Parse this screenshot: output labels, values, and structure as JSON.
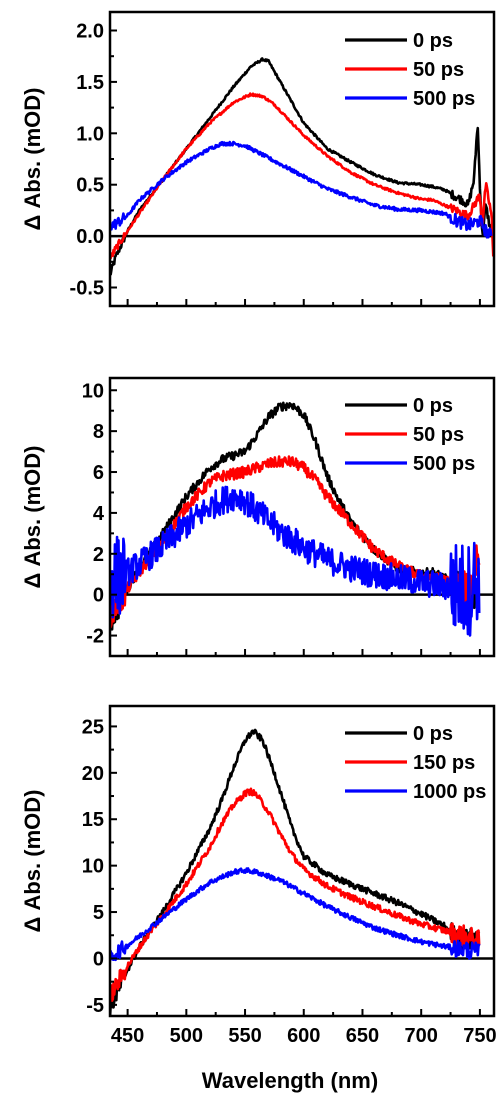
{
  "figure": {
    "xlabel": "Wavelength (nm)"
  },
  "chart_data": [
    {
      "type": "line",
      "ylabel": "Δ Abs. (mOD)",
      "xlim": [
        435,
        762
      ],
      "ylim": [
        -0.68,
        2.18
      ],
      "yticks": [
        "-0.5",
        "0.0",
        "0.5",
        "1.0",
        "1.5",
        "2.0"
      ],
      "ytick_values": [
        -0.5,
        0.0,
        0.5,
        1.0,
        1.5,
        2.0
      ],
      "zero_line": true,
      "legend_position": "top-right",
      "series": [
        {
          "name": "0 ps",
          "color": "#000000",
          "noise": 0.02,
          "x": [
            435,
            440,
            450,
            460,
            480,
            500,
            520,
            540,
            555,
            565,
            570,
            580,
            600,
            620,
            640,
            660,
            680,
            700,
            710,
            720,
            730,
            735,
            740,
            745,
            748,
            750,
            752,
            755,
            760
          ],
          "y": [
            -0.38,
            -0.2,
            0.05,
            0.25,
            0.55,
            0.85,
            1.15,
            1.45,
            1.65,
            1.72,
            1.7,
            1.5,
            1.1,
            0.85,
            0.72,
            0.6,
            0.52,
            0.5,
            0.48,
            0.45,
            0.38,
            0.35,
            0.3,
            0.55,
            1.1,
            0.5,
            0.0,
            0.3,
            0.0
          ]
        },
        {
          "name": "50 ps",
          "color": "#ff0000",
          "noise": 0.02,
          "x": [
            435,
            440,
            450,
            460,
            480,
            500,
            520,
            540,
            555,
            565,
            575,
            590,
            600,
            620,
            640,
            660,
            680,
            700,
            710,
            720,
            730,
            735,
            740,
            745,
            750,
            752,
            755,
            760,
            762
          ],
          "y": [
            -0.22,
            -0.12,
            0.05,
            0.22,
            0.55,
            0.85,
            1.1,
            1.3,
            1.38,
            1.36,
            1.28,
            1.1,
            0.98,
            0.78,
            0.62,
            0.5,
            0.42,
            0.36,
            0.35,
            0.3,
            0.25,
            0.22,
            0.2,
            0.3,
            0.4,
            0.1,
            0.5,
            0.2,
            -0.4
          ]
        },
        {
          "name": "500 ps",
          "color": "#0000ff",
          "noise": 0.03,
          "x": [
            435,
            440,
            450,
            460,
            480,
            500,
            520,
            530,
            540,
            550,
            560,
            580,
            600,
            620,
            640,
            660,
            680,
            700,
            720,
            730,
            740,
            750,
            755,
            760
          ],
          "y": [
            0.1,
            0.12,
            0.2,
            0.35,
            0.55,
            0.72,
            0.85,
            0.9,
            0.9,
            0.88,
            0.82,
            0.7,
            0.58,
            0.46,
            0.38,
            0.3,
            0.26,
            0.25,
            0.22,
            0.15,
            0.1,
            0.15,
            0.05,
            0.0
          ]
        }
      ]
    },
    {
      "type": "line",
      "ylabel": "Δ Abs. (mOD)",
      "xlim": [
        435,
        762
      ],
      "ylim": [
        -3.0,
        10.6
      ],
      "yticks": [
        "-2",
        "0",
        "2",
        "4",
        "6",
        "8",
        "10"
      ],
      "ytick_values": [
        -2,
        0,
        2,
        4,
        6,
        8,
        10
      ],
      "zero_line": true,
      "legend_position": "top-right",
      "series": [
        {
          "name": "0 ps",
          "color": "#000000",
          "noise": 0.08,
          "x": [
            435,
            440,
            450,
            460,
            480,
            500,
            520,
            530,
            540,
            550,
            560,
            570,
            580,
            590,
            600,
            610,
            620,
            630,
            640,
            660,
            680,
            700,
            710,
            720,
            730,
            740,
            745,
            748
          ],
          "y": [
            -1.3,
            -0.8,
            0.3,
            1.3,
            3.0,
            4.8,
            6.2,
            6.6,
            6.8,
            7.0,
            7.8,
            8.7,
            9.2,
            9.3,
            8.8,
            7.5,
            5.8,
            4.6,
            3.6,
            2.2,
            1.3,
            1.05,
            1.1,
            0.8,
            0.4,
            0.1,
            0.0,
            0.2
          ]
        },
        {
          "name": "50 ps",
          "color": "#ff0000",
          "noise": 0.1,
          "x": [
            435,
            440,
            450,
            460,
            480,
            500,
            520,
            530,
            540,
            550,
            560,
            570,
            580,
            590,
            600,
            610,
            620,
            640,
            660,
            680,
            700,
            710,
            720,
            730,
            740,
            745,
            748,
            750
          ],
          "y": [
            -0.8,
            -0.5,
            0.3,
            1.1,
            2.6,
            4.3,
            5.5,
            5.8,
            5.9,
            6.0,
            6.2,
            6.4,
            6.5,
            6.5,
            6.2,
            5.6,
            4.8,
            3.5,
            2.2,
            1.4,
            0.9,
            0.85,
            0.7,
            0.4,
            0.1,
            0.9,
            2.4,
            0.5
          ]
        },
        {
          "name": "500 ps",
          "color": "#0000ff",
          "noise": 0.25,
          "x": [
            435,
            440,
            450,
            460,
            480,
            500,
            520,
            530,
            540,
            545,
            550,
            560,
            580,
            600,
            620,
            640,
            660,
            680,
            700,
            720,
            730,
            740,
            748,
            750
          ],
          "y": [
            0.8,
            0.9,
            1.1,
            1.5,
            2.4,
            3.4,
            4.3,
            4.6,
            4.8,
            4.8,
            4.6,
            4.1,
            3.1,
            2.3,
            1.7,
            1.3,
            1.0,
            0.8,
            0.6,
            0.4,
            0.3,
            0.2,
            1.0,
            -1.0
          ]
        }
      ]
    },
    {
      "type": "line",
      "ylabel": "Δ Abs. (mOD)",
      "xlim": [
        435,
        762
      ],
      "ylim": [
        -6.2,
        27.2
      ],
      "yticks": [
        "-5",
        "0",
        "5",
        "10",
        "15",
        "20",
        "25"
      ],
      "ytick_values": [
        -5,
        0,
        5,
        10,
        15,
        20,
        25
      ],
      "zero_line": true,
      "legend_position": "top-right",
      "series": [
        {
          "name": "0 ps",
          "color": "#000000",
          "noise": 0.05,
          "x": [
            435,
            440,
            450,
            460,
            470,
            480,
            500,
            520,
            530,
            540,
            550,
            557,
            565,
            575,
            590,
            600,
            620,
            640,
            660,
            680,
            700,
            720,
            730,
            740,
            745,
            748,
            750
          ],
          "y": [
            -5.5,
            -4.0,
            -1.2,
            1.2,
            3.2,
            5.0,
            9.2,
            14.0,
            17.0,
            20.5,
            23.5,
            24.5,
            23.5,
            20.0,
            14.0,
            11.0,
            9.0,
            8.0,
            7.0,
            6.0,
            4.8,
            3.5,
            2.2,
            2.0,
            2.2,
            2.5,
            3.3
          ]
        },
        {
          "name": "150 ps",
          "color": "#ff0000",
          "noise": 0.05,
          "x": [
            435,
            440,
            450,
            460,
            470,
            480,
            500,
            520,
            530,
            540,
            550,
            555,
            560,
            570,
            580,
            590,
            600,
            620,
            640,
            660,
            680,
            700,
            720,
            740,
            750
          ],
          "y": [
            -4.0,
            -3.0,
            -0.8,
            1.2,
            3.0,
            4.6,
            8.0,
            12.0,
            14.5,
            16.5,
            17.8,
            18.0,
            17.6,
            15.8,
            13.4,
            11.2,
            9.6,
            7.8,
            6.6,
            5.6,
            4.6,
            3.7,
            3.0,
            2.3,
            1.8
          ]
        },
        {
          "name": "1000 ps",
          "color": "#0000ff",
          "noise": 0.04,
          "x": [
            435,
            440,
            450,
            460,
            470,
            480,
            500,
            520,
            540,
            550,
            560,
            580,
            600,
            620,
            640,
            660,
            680,
            700,
            720,
            740,
            750
          ],
          "y": [
            0.0,
            0.6,
            1.4,
            2.4,
            3.4,
            4.4,
            6.4,
            8.2,
            9.3,
            9.5,
            9.3,
            8.4,
            7.0,
            5.6,
            4.4,
            3.3,
            2.5,
            1.8,
            1.3,
            0.9,
            0.7
          ]
        }
      ]
    }
  ],
  "x_axis": {
    "ticks": [
      "450",
      "500",
      "550",
      "600",
      "650",
      "700",
      "750"
    ],
    "tick_values": [
      450,
      500,
      550,
      600,
      650,
      700,
      750
    ]
  },
  "colors": {
    "black": "#000000",
    "red": "#ff0000",
    "blue": "#0000ff"
  }
}
